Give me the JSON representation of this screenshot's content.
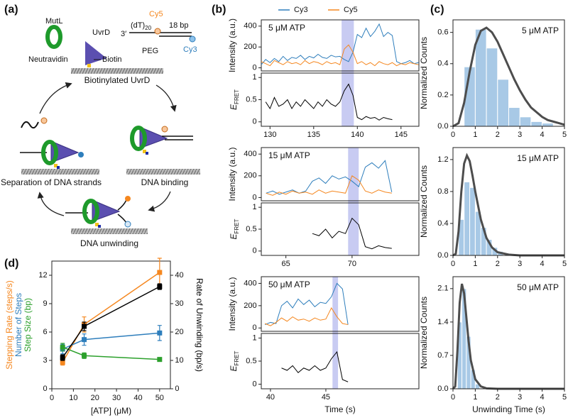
{
  "panel_labels": [
    "(a)",
    "(b)",
    "(c)",
    "(d)"
  ],
  "diagram": {
    "mutl": "MutL",
    "uvrd": "UvrD",
    "three_prime": "3′",
    "dt": "(dT)",
    "dt_subscript": "20",
    "cy5": "Cy5",
    "bp": "18 bp",
    "cy3": "Cy3",
    "neutravidin": "Neutravidin",
    "biotin": "Biotin",
    "peg": "PEG",
    "surface_label": "Biotinylated UvrD",
    "steps": [
      "Separation of DNA strands",
      "DNA binding",
      "DNA unwinding"
    ]
  },
  "chart_data": [
    {
      "type": "line",
      "annotation": "5 μM ATP",
      "ylabel": "Intensity (a.u.)",
      "y2label": {
        "symbol": "E",
        "subscript": "FRET"
      },
      "xlim": [
        129,
        147.05
      ],
      "xticks": [
        130,
        135,
        140,
        145
      ],
      "ylim": [
        -30,
        460
      ],
      "yticks": [
        0,
        200,
        400
      ],
      "y2lim": [
        -0.1,
        1.1
      ],
      "y2ticks": [
        0,
        0.5,
        1
      ],
      "highlight": [
        138.2,
        139.6
      ],
      "highlight_color": "#c8cbf2",
      "x": [
        129,
        129.5,
        130,
        130.5,
        131,
        131.5,
        132,
        132.5,
        133,
        133.5,
        134,
        134.5,
        135,
        135.5,
        136,
        136.5,
        137,
        137.5,
        138,
        138.5,
        139,
        139.5,
        140,
        140.5,
        141,
        141.5,
        142,
        142.5,
        143,
        143.5,
        144,
        144.5,
        145,
        145.5,
        146,
        146.5,
        147
      ],
      "series": [
        {
          "name": "Cy3",
          "color": "#2e7ebc",
          "values": [
            30,
            80,
            50,
            90,
            60,
            110,
            70,
            100,
            90,
            120,
            80,
            110,
            95,
            130,
            100,
            90,
            120,
            105,
            110,
            80,
            60,
            150,
            320,
            290,
            380,
            300,
            350,
            420,
            300,
            340,
            310,
            60,
            40,
            50,
            70,
            40,
            50
          ]
        },
        {
          "name": "Cy5",
          "color": "#f5871f",
          "values": [
            60,
            40,
            20,
            70,
            50,
            30,
            60,
            40,
            50,
            30,
            70,
            40,
            60,
            50,
            30,
            60,
            40,
            50,
            30,
            180,
            220,
            150,
            40,
            60,
            30,
            50,
            20,
            60,
            40,
            30,
            50,
            20,
            40,
            30,
            50,
            40,
            30
          ]
        },
        {
          "color": "#000000",
          "axis": "y2",
          "values": [
            null,
            0.45,
            0.3,
            0.55,
            0.35,
            0.4,
            0.5,
            0.3,
            0.45,
            0.35,
            0.5,
            0.4,
            0.3,
            0.45,
            0.35,
            0.5,
            0.4,
            0.35,
            0.45,
            0.7,
            0.85,
            0.6,
            0.1,
            0.05,
            0.12,
            0.08,
            0.1,
            0.04,
            0.1,
            0.07,
            0.05,
            null,
            null,
            null,
            null,
            null,
            null
          ]
        }
      ]
    },
    {
      "type": "line",
      "annotation": "15 μM ATP",
      "ylabel": "Intensity (a.u.)",
      "y2label": {
        "symbol": "E",
        "subscript": "FRET"
      },
      "xlim": [
        63.14,
        75.05
      ],
      "xticks": [
        65,
        70
      ],
      "ylim": [
        -30,
        460
      ],
      "yticks": [
        0,
        200,
        400
      ],
      "y2lim": [
        -0.1,
        1.1
      ],
      "y2ticks": [
        0,
        0.5,
        1
      ],
      "highlight": [
        69.7,
        70.5
      ],
      "highlight_color": "#c8cbf2",
      "x": [
        63.5,
        64,
        64.5,
        65,
        65.5,
        66,
        66.5,
        67,
        67.5,
        68,
        68.5,
        69,
        69.5,
        70,
        70.5,
        71,
        71.5,
        72,
        72.5,
        73
      ],
      "series": [
        {
          "color": "#2e7ebc",
          "values": [
            40,
            60,
            30,
            50,
            70,
            40,
            60,
            150,
            180,
            130,
            200,
            170,
            190,
            150,
            100,
            280,
            320,
            270,
            340,
            50
          ]
        },
        {
          "color": "#f5871f",
          "values": [
            40,
            20,
            50,
            30,
            60,
            40,
            50,
            30,
            70,
            40,
            60,
            50,
            40,
            200,
            160,
            60,
            40,
            70,
            50,
            40
          ]
        },
        {
          "color": "#000000",
          "axis": "y2",
          "values": [
            null,
            null,
            null,
            null,
            null,
            null,
            null,
            0.4,
            0.35,
            0.5,
            0.3,
            0.45,
            0.4,
            0.75,
            0.6,
            0.1,
            0.05,
            0.12,
            0.08,
            0.06
          ]
        }
      ]
    },
    {
      "type": "line",
      "annotation": "50 μM ATP",
      "ylabel": "Intensity (a.u.)",
      "y2label": {
        "symbol": "E",
        "subscript": "FRET"
      },
      "xlabel": "Time (s)",
      "xlim": [
        39.17,
        53.4
      ],
      "xticks": [
        40,
        45
      ],
      "ylim": [
        -30,
        460
      ],
      "yticks": [
        0,
        200,
        400
      ],
      "y2lim": [
        -0.1,
        1.1
      ],
      "y2ticks": [
        0,
        0.5,
        1
      ],
      "highlight": [
        45.6,
        46.1
      ],
      "highlight_color": "#c8cbf2",
      "x": [
        39.5,
        40,
        40.5,
        41,
        41.5,
        42,
        42.5,
        43,
        43.5,
        44,
        44.5,
        45,
        45.5,
        46,
        46.5,
        47
      ],
      "series": [
        {
          "color": "#2e7ebc",
          "values": [
            30,
            50,
            40,
            200,
            240,
            180,
            260,
            210,
            250,
            190,
            230,
            220,
            280,
            400,
            350,
            30
          ]
        },
        {
          "color": "#f5871f",
          "values": [
            40,
            20,
            50,
            90,
            60,
            100,
            70,
            80,
            60,
            90,
            70,
            80,
            180,
            100,
            40,
            30
          ]
        },
        {
          "color": "#000000",
          "axis": "y2",
          "values": [
            null,
            null,
            null,
            0.35,
            0.3,
            0.4,
            0.25,
            0.35,
            0.3,
            0.4,
            0.3,
            0.35,
            0.55,
            0.7,
            0.1,
            0.05
          ]
        }
      ]
    },
    {
      "type": "histogram",
      "annotation": "5 μM ATP",
      "ylabel": "Normalized Counts",
      "color": "#a8c9e6",
      "xlim": [
        0,
        5
      ],
      "xticks": [
        0,
        1,
        2,
        3,
        4,
        5
      ],
      "ylim": [
        0,
        0.68
      ],
      "yticks": [
        {
          "value": 0,
          "label": "0.0"
        },
        {
          "value": 0.2,
          "label": "0.2"
        },
        {
          "value": 0.4,
          "label": "0.4"
        },
        {
          "value": 0.6,
          "label": "0.6"
        }
      ],
      "bins": [
        0.5,
        1,
        1.5,
        2,
        2.5,
        3,
        3.5,
        4,
        4.5
      ],
      "counts": [
        0.38,
        0.62,
        0.5,
        0.3,
        0.12,
        0.06,
        0.03,
        0.02
      ],
      "fit": {
        "color": "#4d4d4d",
        "x": [
          0,
          0.25,
          0.5,
          0.75,
          1,
          1.25,
          1.5,
          1.75,
          2,
          2.25,
          2.5,
          2.75,
          3,
          3.25,
          3.5,
          3.75,
          4,
          4.25,
          4.5,
          4.75,
          5
        ],
        "values": [
          0,
          0.02,
          0.15,
          0.35,
          0.52,
          0.61,
          0.63,
          0.6,
          0.54,
          0.46,
          0.38,
          0.3,
          0.23,
          0.17,
          0.12,
          0.09,
          0.06,
          0.04,
          0.03,
          0.02,
          0.01
        ]
      }
    },
    {
      "type": "histogram",
      "annotation": "15 μM ATP",
      "ylabel": "Normalized Counts",
      "color": "#a8c9e6",
      "xlim": [
        0,
        5
      ],
      "xticks": [
        0,
        1,
        2,
        3,
        4,
        5
      ],
      "ylim": [
        0,
        1.35
      ],
      "yticks": [
        {
          "value": 0,
          "label": "0.0"
        },
        {
          "value": 0.4,
          "label": "0.4"
        },
        {
          "value": 0.8,
          "label": "0.8"
        },
        {
          "value": 1.2,
          "label": "1.2"
        }
      ],
      "bins": [
        0.25,
        0.5,
        0.75,
        1,
        1.25,
        1.5,
        1.75,
        2,
        2.25
      ],
      "counts": [
        0.45,
        0.92,
        0.85,
        0.55,
        0.35,
        0.2,
        0.1,
        0.05
      ],
      "fit": {
        "color": "#4d4d4d",
        "x": [
          0,
          0.125,
          0.25,
          0.375,
          0.5,
          0.625,
          0.75,
          0.875,
          1,
          1.25,
          1.5,
          1.75,
          2,
          2.5,
          3,
          4,
          5
        ],
        "values": [
          0,
          0.02,
          0.3,
          0.8,
          1.15,
          1.25,
          1.18,
          1,
          0.8,
          0.45,
          0.22,
          0.1,
          0.04,
          0.01,
          0,
          0,
          0
        ]
      }
    },
    {
      "type": "histogram",
      "annotation": "50 μM ATP",
      "ylabel": "Normalized Counts",
      "xlabel": "Unwinding Time (s)",
      "color": "#a8c9e6",
      "xlim": [
        0,
        5
      ],
      "xticks": [
        0,
        1,
        2,
        3,
        4,
        5
      ],
      "ylim": [
        0,
        2.35
      ],
      "yticks": [
        {
          "value": 0,
          "label": "0.0"
        },
        {
          "value": 0.7,
          "label": "0.7"
        },
        {
          "value": 1.4,
          "label": "1.4"
        },
        {
          "value": 2.1,
          "label": "2.1"
        }
      ],
      "bins": [
        0.2,
        0.4,
        0.6,
        0.8,
        1,
        1.2
      ],
      "counts": [
        1.4,
        2.1,
        1.1,
        0.4,
        0.1
      ],
      "fit": {
        "color": "#4d4d4d",
        "x": [
          0,
          0.1,
          0.2,
          0.3,
          0.4,
          0.5,
          0.6,
          0.7,
          0.8,
          1,
          1.25,
          1.5,
          2,
          3,
          5
        ],
        "values": [
          0,
          0.05,
          0.8,
          1.8,
          2.2,
          2,
          1.5,
          1,
          0.6,
          0.2,
          0.05,
          0.01,
          0,
          0,
          0
        ]
      }
    },
    {
      "type": "errorbar",
      "xlabel": "[ATP] (μM)",
      "xlim": [
        0,
        55
      ],
      "xticks": [
        0,
        10,
        20,
        30,
        40,
        50
      ],
      "ylim": [
        0,
        13.5
      ],
      "yticks": [
        0,
        3,
        6,
        9,
        12
      ],
      "y2lim": [
        0,
        45
      ],
      "y2ticks": [
        0,
        10,
        20,
        30,
        40
      ],
      "x": [
        5,
        15,
        50
      ],
      "series": [
        {
          "name": "Stepping Rate (steps/s)",
          "color": "#f5871f",
          "values": [
            2.8,
            6.8,
            12.3
          ],
          "errors": [
            0.3,
            0.8,
            1.5
          ]
        },
        {
          "name": "Number of Steps",
          "color": "#2e7ebc",
          "values": [
            4.2,
            5.2,
            5.9
          ],
          "errors": [
            0.5,
            0.6,
            0.8
          ]
        },
        {
          "name": "Step Size (bp)",
          "color": "#2ca02c",
          "values": [
            4.4,
            3.5,
            3.1
          ],
          "errors": [
            0.4,
            0.3,
            0.2
          ]
        },
        {
          "name": "Rate of Unwinding (bp/s)",
          "color": "#000000",
          "axis": "y2",
          "values": [
            11,
            22,
            36
          ],
          "errors": [
            1,
            1.5,
            1
          ]
        }
      ]
    }
  ]
}
